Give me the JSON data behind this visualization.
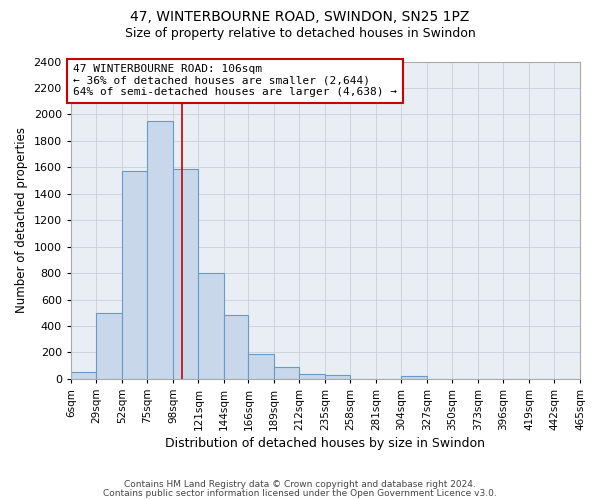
{
  "title": "47, WINTERBOURNE ROAD, SWINDON, SN25 1PZ",
  "subtitle": "Size of property relative to detached houses in Swindon",
  "xlabel": "Distribution of detached houses by size in Swindon",
  "ylabel": "Number of detached properties",
  "bar_color": "#c8d8ea",
  "bar_edge_color": "#6699cc",
  "bin_labels": [
    "6sqm",
    "29sqm",
    "52sqm",
    "75sqm",
    "98sqm",
    "121sqm",
    "144sqm",
    "166sqm",
    "189sqm",
    "212sqm",
    "235sqm",
    "258sqm",
    "281sqm",
    "304sqm",
    "327sqm",
    "350sqm",
    "373sqm",
    "396sqm",
    "419sqm",
    "442sqm",
    "465sqm"
  ],
  "bin_edges": [
    6,
    29,
    52,
    75,
    98,
    121,
    144,
    166,
    189,
    212,
    235,
    258,
    281,
    304,
    327,
    350,
    373,
    396,
    419,
    442,
    465
  ],
  "bar_heights": [
    55,
    500,
    1575,
    1950,
    1590,
    800,
    480,
    190,
    90,
    35,
    30,
    0,
    0,
    20,
    0,
    0,
    0,
    0,
    0,
    0
  ],
  "ylim": [
    0,
    2400
  ],
  "yticks": [
    0,
    200,
    400,
    600,
    800,
    1000,
    1200,
    1400,
    1600,
    1800,
    2000,
    2200,
    2400
  ],
  "vline_x": 106,
  "vline_color": "#cc0000",
  "annotation_line1": "47 WINTERBOURNE ROAD: 106sqm",
  "annotation_line2": "← 36% of detached houses are smaller (2,644)",
  "annotation_line3": "64% of semi-detached houses are larger (4,638) →",
  "annotation_box_edge": "#cc0000",
  "footer1": "Contains HM Land Registry data © Crown copyright and database right 2024.",
  "footer2": "Contains public sector information licensed under the Open Government Licence v3.0.",
  "plot_bg_color": "#ffffff",
  "grid_bg_color": "#e8eef4",
  "grid_color": "#c8d0d8",
  "title_fontsize": 10,
  "subtitle_fontsize": 9
}
